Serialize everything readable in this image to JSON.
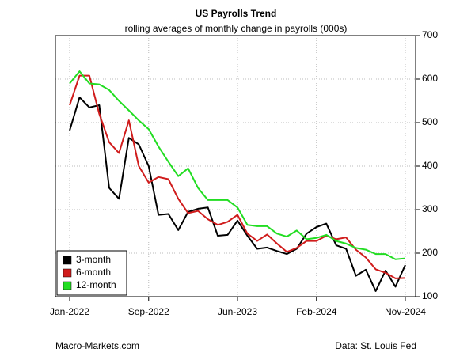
{
  "chart_data": {
    "type": "line",
    "title": "US Payrolls Trend",
    "subtitle": "rolling averages of monthly change in payrolls (000s)",
    "x": [
      "2022-01",
      "2022-02",
      "2022-03",
      "2022-04",
      "2022-05",
      "2022-06",
      "2022-07",
      "2022-08",
      "2022-09",
      "2022-10",
      "2022-11",
      "2022-12",
      "2023-01",
      "2023-02",
      "2023-03",
      "2023-04",
      "2023-05",
      "2023-06",
      "2023-07",
      "2023-08",
      "2023-09",
      "2023-10",
      "2023-11",
      "2023-12",
      "2024-01",
      "2024-02",
      "2024-03",
      "2024-04",
      "2024-05",
      "2024-06",
      "2024-07",
      "2024-08",
      "2024-09",
      "2024-10",
      "2024-11"
    ],
    "xticks": [
      {
        "value": "2022-01",
        "label": "Jan-2022"
      },
      {
        "value": "2022-09",
        "label": "Sep-2022"
      },
      {
        "value": "2023-06",
        "label": "Jun-2023"
      },
      {
        "value": "2024-02",
        "label": "Feb-2024"
      },
      {
        "value": "2024-11",
        "label": "Nov-2024"
      }
    ],
    "series": [
      {
        "name": "3-month",
        "color": "#000000",
        "values": [
          482,
          558,
          535,
          540,
          350,
          325,
          465,
          450,
          400,
          288,
          290,
          253,
          295,
          302,
          305,
          240,
          242,
          275,
          240,
          210,
          213,
          205,
          198,
          210,
          245,
          260,
          268,
          218,
          210,
          148,
          162,
          113,
          160,
          123,
          173
        ]
      },
      {
        "name": "6-month",
        "color": "#d01c1c",
        "values": [
          540,
          608,
          608,
          520,
          455,
          430,
          505,
          400,
          362,
          375,
          370,
          325,
          292,
          297,
          278,
          265,
          272,
          288,
          245,
          228,
          243,
          222,
          203,
          212,
          228,
          228,
          240,
          232,
          236,
          208,
          190,
          163,
          155,
          142,
          143
        ]
      },
      {
        "name": "12-month",
        "color": "#22dd22",
        "values": [
          590,
          618,
          590,
          588,
          575,
          550,
          528,
          505,
          485,
          445,
          410,
          377,
          395,
          350,
          322,
          322,
          322,
          305,
          265,
          262,
          262,
          245,
          238,
          252,
          232,
          235,
          242,
          228,
          222,
          212,
          208,
          198,
          198,
          186,
          188
        ]
      }
    ],
    "ylim": [
      100,
      700
    ],
    "yticks": [
      100,
      200,
      300,
      400,
      500,
      600,
      700
    ],
    "grid": true,
    "legend": "bottom-left",
    "source_left": "Macro-Markets.com",
    "source_right": "Data: St. Louis Fed"
  }
}
